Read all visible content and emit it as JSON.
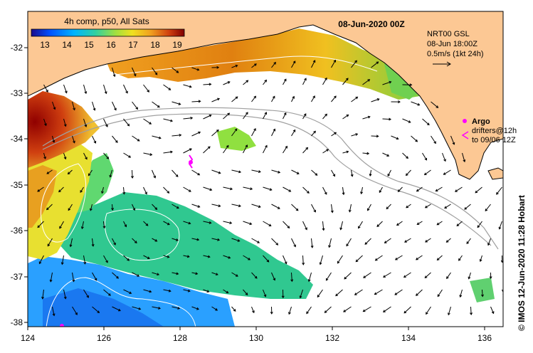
{
  "map": {
    "date_title": "08-Jun-2020 00Z",
    "colorbar": {
      "title": "4h comp, p50, All Sats",
      "ticks": [
        "13",
        "14",
        "15",
        "16",
        "17",
        "18",
        "19"
      ],
      "min": 12.5,
      "max": 19.5,
      "colors": [
        "#1a0a8c",
        "#0050ff",
        "#00b4ff",
        "#30d0a0",
        "#a0e040",
        "#f0e020",
        "#f0a020",
        "#d04010",
        "#800000"
      ]
    },
    "current_info": {
      "line1": "NRT00 GSL",
      "line2": "08-Jun 18:00Z",
      "line3": "0.5m/s (1kt 24h)"
    },
    "argo_label": "Argo",
    "drifters_line1": "drifters@12h",
    "drifters_line2": "to 09/06 12Z",
    "credit": "© IMOS 12-Jun-2020 11:28 Hobart",
    "x_ticks": [
      "124",
      "126",
      "128",
      "130",
      "132",
      "134",
      "136"
    ],
    "y_ticks": [
      "-32",
      "-33",
      "-34",
      "-35",
      "-36",
      "-37",
      "-38"
    ],
    "lon_range": [
      124,
      136.5
    ],
    "lat_range": [
      -38.1,
      -31.4
    ],
    "land_color": "#fcc894",
    "argo_color": "#ff00ff"
  }
}
